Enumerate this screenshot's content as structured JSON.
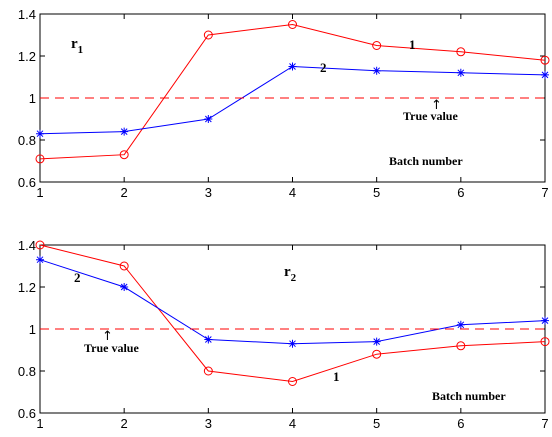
{
  "chart_data": [
    {
      "type": "line",
      "x": [
        1,
        2,
        3,
        4,
        5,
        6,
        7
      ],
      "xlim": [
        1,
        7
      ],
      "ylim": [
        0.6,
        1.4
      ],
      "xticks": [
        "1",
        "2",
        "3",
        "4",
        "5",
        "6",
        "7"
      ],
      "yticks": [
        "0.6",
        "0.8",
        "1",
        "1.2",
        "1.4"
      ],
      "grid": false,
      "series": [
        {
          "name": "1",
          "values": [
            0.71,
            0.73,
            1.3,
            1.35,
            1.25,
            1.22,
            1.18
          ],
          "color": "#ff0000",
          "marker": "circle"
        },
        {
          "name": "2",
          "values": [
            0.83,
            0.84,
            0.9,
            1.15,
            1.13,
            1.12,
            1.11
          ],
          "color": "#0000ff",
          "marker": "star"
        },
        {
          "name": "",
          "values": [
            1,
            1,
            1,
            1,
            1,
            1,
            1
          ],
          "color": "#ff0000",
          "dashed": true
        }
      ],
      "annotations": {
        "panel_label": "r",
        "panel_label_sub": "1",
        "true_value": "True value",
        "true_value_arrow": "↑",
        "batch_number": "Batch number"
      }
    },
    {
      "type": "line",
      "x": [
        1,
        2,
        3,
        4,
        5,
        6,
        7
      ],
      "xlim": [
        1,
        7
      ],
      "ylim": [
        0.6,
        1.4
      ],
      "xticks": [
        "1",
        "2",
        "3",
        "4",
        "5",
        "6",
        "7"
      ],
      "yticks": [
        "0.6",
        "0.8",
        "1",
        "1.2",
        "1.4"
      ],
      "grid": false,
      "series": [
        {
          "name": "1",
          "values": [
            1.4,
            1.3,
            0.8,
            0.75,
            0.88,
            0.92,
            0.94
          ],
          "color": "#ff0000",
          "marker": "circle"
        },
        {
          "name": "2",
          "values": [
            1.33,
            1.2,
            0.95,
            0.93,
            0.94,
            1.02,
            1.04
          ],
          "color": "#0000ff",
          "marker": "star"
        },
        {
          "name": "",
          "values": [
            1,
            1,
            1,
            1,
            1,
            1,
            1
          ],
          "color": "#ff0000",
          "dashed": true
        }
      ],
      "annotations": {
        "panel_label": "r",
        "panel_label_sub": "2",
        "true_value": "True value",
        "true_value_arrow": "↑",
        "batch_number": "Batch number"
      }
    }
  ]
}
